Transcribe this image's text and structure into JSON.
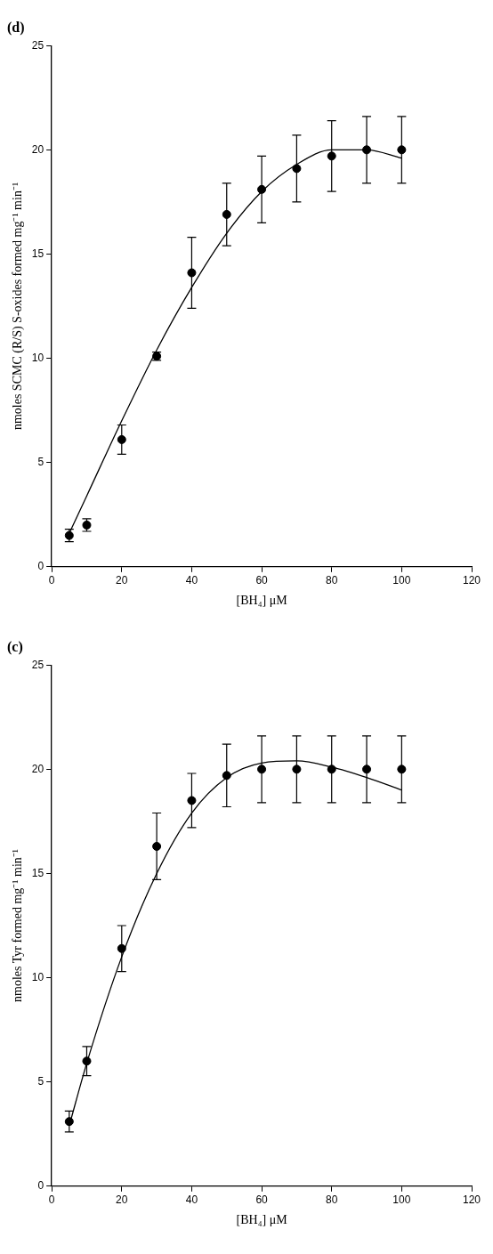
{
  "chart_data": [
    {
      "type": "scatter",
      "title": "(d)",
      "xlabel": "[BH₄] μM",
      "ylabel": "nmoles SCMC (R/S) S-oxides formed mg⁻¹ min⁻¹",
      "xlim": [
        0,
        120
      ],
      "xticks": [
        0,
        20,
        40,
        60,
        80,
        100,
        120
      ],
      "ylim": [
        0,
        25
      ],
      "yticks": [
        0,
        5,
        10,
        15,
        20,
        25
      ],
      "grid": false,
      "legend": false,
      "line_style": "solid",
      "series": [
        {
          "color": "#000000",
          "marker": "circle",
          "x": [
            5,
            10,
            20,
            30,
            40,
            50,
            60,
            70,
            80,
            90,
            100
          ],
          "values": [
            1.5,
            2.0,
            6.1,
            10.1,
            14.1,
            16.9,
            18.1,
            19.1,
            19.7,
            20.0,
            20.0
          ],
          "errors": [
            0.3,
            0.3,
            0.7,
            0.2,
            1.7,
            1.5,
            1.6,
            1.6,
            1.7,
            1.6,
            1.6
          ]
        },
        {
          "type": "line",
          "color": "#000000",
          "marker": "none",
          "x": [
            5,
            10,
            20,
            30,
            40,
            50,
            60,
            70,
            80,
            90,
            100
          ],
          "values": [
            1.6,
            3.4,
            7.0,
            10.4,
            13.4,
            16.0,
            18.0,
            19.3,
            20.0,
            20.0,
            19.6
          ]
        }
      ]
    },
    {
      "type": "scatter",
      "title": "(c)",
      "xlabel": "[BH₄] μM",
      "ylabel": "nmoles Tyr formed mg⁻¹ min⁻¹",
      "xlim": [
        0,
        120
      ],
      "xticks": [
        0,
        20,
        40,
        60,
        80,
        100,
        120
      ],
      "ylim": [
        0,
        25
      ],
      "yticks": [
        0,
        5,
        10,
        15,
        20,
        25
      ],
      "grid": false,
      "legend": false,
      "line_style": "solid",
      "series": [
        {
          "color": "#000000",
          "marker": "circle",
          "x": [
            5,
            10,
            20,
            30,
            40,
            50,
            60,
            70,
            80,
            90,
            100
          ],
          "values": [
            3.1,
            6.0,
            11.4,
            16.3,
            18.5,
            19.7,
            20.0,
            20.0,
            20.0,
            20.0,
            20.0
          ],
          "errors": [
            0.5,
            0.7,
            1.1,
            1.6,
            1.3,
            1.5,
            1.6,
            1.6,
            1.6,
            1.6,
            1.6
          ]
        },
        {
          "type": "line",
          "color": "#000000",
          "marker": "none",
          "x": [
            5,
            10,
            20,
            30,
            40,
            50,
            60,
            70,
            80,
            90,
            100
          ],
          "values": [
            2.9,
            5.9,
            11.0,
            15.0,
            17.9,
            19.6,
            20.3,
            20.4,
            20.1,
            19.6,
            19.0
          ]
        }
      ]
    }
  ]
}
